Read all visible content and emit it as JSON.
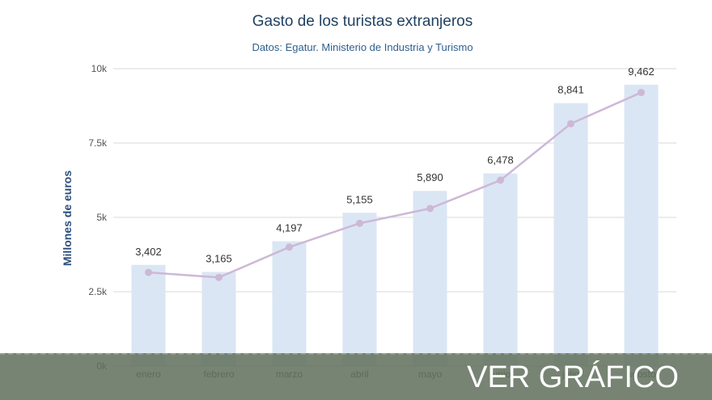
{
  "chart_data": {
    "type": "bar",
    "title": "Gasto de los turistas extranjeros",
    "subtitle": "Datos: Egatur. Ministerio de Industria y Turismo",
    "ylabel": "Millones de euros",
    "xlabel": "",
    "ylim": [
      0,
      10000
    ],
    "yticks": [
      0,
      2500,
      5000,
      7500,
      10000
    ],
    "ytick_labels": [
      "0k",
      "2.5k",
      "5k",
      "7.5k",
      "10k"
    ],
    "grid": true,
    "categories": [
      "enero",
      "febrero",
      "marzo",
      "abril",
      "mayo",
      "junio",
      "julio",
      "agosto"
    ],
    "series": [
      {
        "type": "bar",
        "values": [
          3402,
          3165,
          4197,
          5155,
          5890,
          6478,
          8841,
          9462
        ],
        "data_labels": [
          "3,402",
          "3,165",
          "4,197",
          "5,155",
          "5,890",
          "6,478",
          "8,841",
          "9,462"
        ],
        "color": "#dbe6f4"
      },
      {
        "type": "line",
        "values": [
          3150,
          2980,
          4000,
          4800,
          5300,
          6250,
          8150,
          9200
        ],
        "color": "#cdb8d6"
      }
    ]
  },
  "overlay": {
    "button_label": "VER GRÁFICO",
    "band_color": "#5f6e5a"
  }
}
